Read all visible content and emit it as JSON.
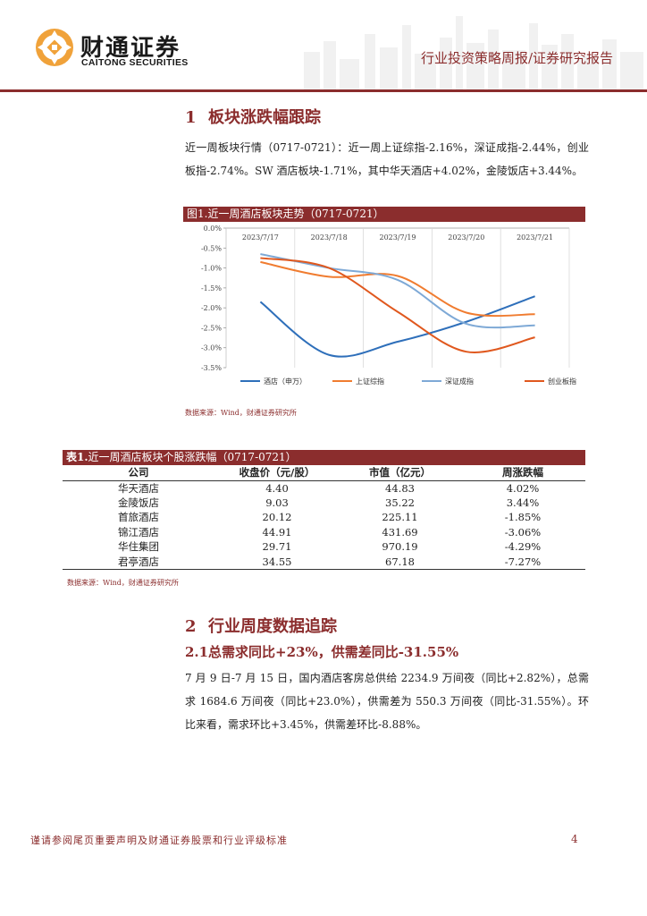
{
  "header": {
    "brand_cn": "财通证券",
    "brand_en": "CAITONG SECURITIES",
    "report_type": "行业投资策略周报/证券研究报告",
    "accent_color": "#8b2d2d"
  },
  "section1": {
    "num": "1",
    "title": "板块涨跌幅跟踪",
    "paragraph": "近一周板块行情（0717-0721）：近一周上证综指-2.16%，深证成指-2.44%，创业板指-2.74%。SW 酒店板块-1.71%，其中华天酒店+4.02%，金陵饭店+3.44%。"
  },
  "figure1": {
    "caption": "图1.近一周酒店板块走势（0717-0721）",
    "source": "数据来源：Wind，财通证券研究所"
  },
  "chart_data": {
    "type": "line",
    "x": [
      "2023/7/17",
      "2023/7/18",
      "2023/7/19",
      "2023/7/20",
      "2023/7/21"
    ],
    "ylim": [
      -3.5,
      0.0
    ],
    "yticks": [
      "0.0%",
      "-0.5%",
      "-1.0%",
      "-1.5%",
      "-2.0%",
      "-2.5%",
      "-3.0%",
      "-3.5%"
    ],
    "x_axis_position": "top",
    "grid": "vertical",
    "legend": "bottom",
    "series": [
      {
        "name": "酒店（申万）",
        "color": "#2e6fba",
        "values": [
          -1.85,
          -3.18,
          -2.85,
          -2.35,
          -1.71
        ]
      },
      {
        "name": "上证综指",
        "color": "#f07c30",
        "values": [
          -0.85,
          -1.22,
          -1.2,
          -2.12,
          -2.16
        ]
      },
      {
        "name": "深证成指",
        "color": "#7ea9d6",
        "values": [
          -0.65,
          -1.0,
          -1.3,
          -2.4,
          -2.44
        ]
      },
      {
        "name": "创业板指",
        "color": "#e0581e",
        "values": [
          -0.75,
          -1.0,
          -2.1,
          -3.1,
          -2.74
        ]
      }
    ]
  },
  "table1": {
    "caption_bold": "表1.",
    "caption_rest": "近一周酒店板块个股涨跌幅（0717-0721）",
    "headers": [
      "公司",
      "收盘价（元/股）",
      "市值（亿元）",
      "周涨跌幅"
    ],
    "rows": [
      [
        "华天酒店",
        "4.40",
        "44.83",
        "4.02%"
      ],
      [
        "金陵饭店",
        "9.03",
        "35.22",
        "3.44%"
      ],
      [
        "首旅酒店",
        "20.12",
        "225.11",
        "-1.85%"
      ],
      [
        "锦江酒店",
        "44.91",
        "431.69",
        "-3.06%"
      ],
      [
        "华住集团",
        "29.71",
        "970.19",
        "-4.29%"
      ],
      [
        "君亭酒店",
        "34.55",
        "67.18",
        "-7.27%"
      ]
    ],
    "source": "数据来源：Wind，财通证券研究所"
  },
  "section2": {
    "num": "2",
    "title": "行业周度数据追踪",
    "sub_num": "2.1",
    "sub_title": "总需求同比+23%，供需差同比-31.55%",
    "paragraph": "7 月 9 日-7 月 15 日，国内酒店客房总供给 2234.9 万间夜（同比+2.82%），总需求 1684.6 万间夜（同比+23.0%），供需差为 550.3 万间夜（同比-31.55%）。环比来看，需求环比+3.45%，供需差环比-8.88%。"
  },
  "footer": {
    "note": "谨请参阅尾页重要声明及财通证券股票和行业评级标准",
    "page": "4"
  }
}
